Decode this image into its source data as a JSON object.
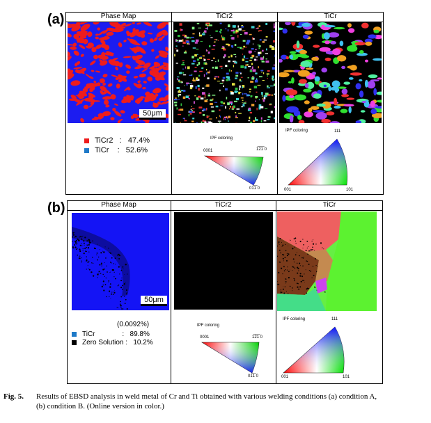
{
  "figure": {
    "panel_a": {
      "letter": "(a)",
      "titles": {
        "phase": "Phase Map",
        "ticr2": "TiCr2",
        "ticr": "TiCr"
      },
      "scale": "50μm",
      "legend": [
        {
          "swatch": "#ee1c1c",
          "text": "TiCr2   :   47.4%"
        },
        {
          "swatch": "#1f7ac8",
          "text": "TiCr    :   52.6%"
        }
      ],
      "ipf_ticr2": {
        "title": "IPF coloring",
        "c1": "0001",
        "c2": "1̅2̅1̅ 0",
        "c3": "01̅1̅ 0"
      },
      "ipf_ticr": {
        "title": "IPF coloring",
        "c1": "001",
        "c2": "101",
        "c3": "111"
      }
    },
    "panel_b": {
      "letter": "(b)",
      "titles": {
        "phase": "Phase Map",
        "ticr2": "TiCr2",
        "ticr": "TiCr"
      },
      "scale": "50μm",
      "note": "(0.0092%)",
      "legend": [
        {
          "swatch": "#1f7ac8",
          "text": "TiCr              :   89.8%"
        },
        {
          "swatch": "#000000",
          "text": "Zero Solution :   10.2%"
        }
      ],
      "ipf_ticr2": {
        "title": "IPF coloring",
        "c1": "0001",
        "c2": "1̅2̅1̅ 0",
        "c3": "01̅1̅ 0"
      },
      "ipf_ticr": {
        "title": "IPF coloring",
        "c1": "001",
        "c2": "101",
        "c3": "111"
      }
    },
    "caption": {
      "label": "Fig. 5.",
      "line1": "Results of EBSD analysis in weld metal of Cr and Ti obtained with various welding conditions (a) condition A,",
      "line2": "(b) condition B. (Online version in color.)"
    },
    "colors": {
      "red": "#ee1c1c",
      "blue": "#1c1cf0",
      "black": "#000000"
    }
  }
}
